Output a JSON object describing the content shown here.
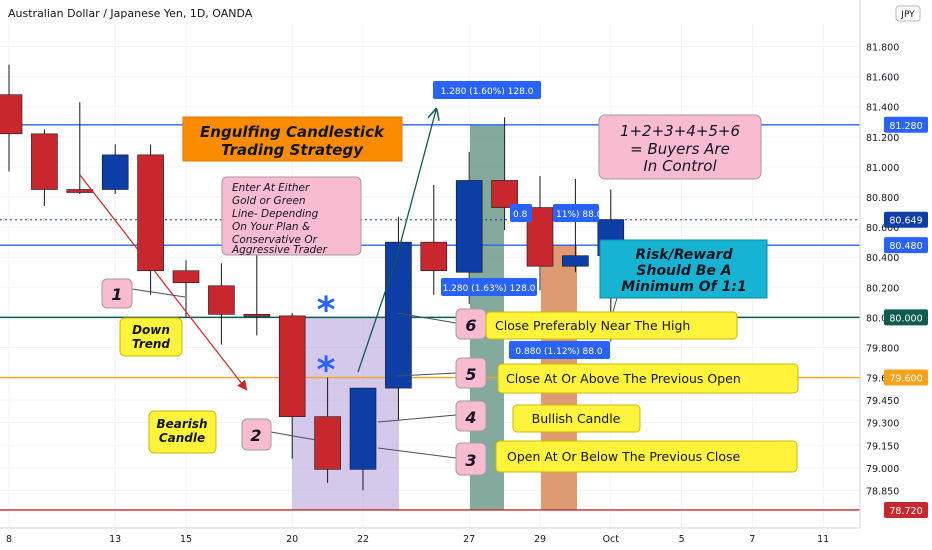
{
  "header": {
    "title": "Australian Dollar / Japanese Yen, 1D, OANDA"
  },
  "currency_badge": "JPY",
  "colors": {
    "up": "#0d3ea6",
    "down": "#c8282d",
    "blue_line": "#2962ff",
    "green_line": "#0f5c4e",
    "orange_line": "#f7a21b",
    "red_line": "#c8282d",
    "callout_pink": "#f8bbd0",
    "callout_yellow": "#fff33b",
    "title_orange": "#fb8c00",
    "risk_cyan": "#16b4d2",
    "purple_zone": "#b39ddb",
    "green_zone": "#6f9a8c",
    "orange_zone": "#d88a5a"
  },
  "chart_data": {
    "type": "candlestick",
    "ylim": [
      78.6,
      81.95
    ],
    "y_ticks": [
      81.8,
      81.6,
      81.4,
      81.2,
      81.0,
      80.8,
      80.6,
      80.4,
      80.2,
      80.0,
      79.8,
      79.6,
      79.45,
      79.3,
      79.15,
      79.0,
      78.85
    ],
    "y_tick_labels": [
      "81.800",
      "81.600",
      "81.400",
      "81.200",
      "81.000",
      "80.800",
      "80.600",
      "80.400",
      "80.200",
      "80.000",
      "79.800",
      "79.600",
      "79.450",
      "79.300",
      "79.150",
      "79.000",
      "78.850"
    ],
    "x_labels": [
      "8",
      "13",
      "15",
      "20",
      "22",
      "27",
      "29",
      "Oct",
      "5",
      "7",
      "11"
    ],
    "candles": [
      {
        "o": 81.48,
        "h": 81.68,
        "l": 80.97,
        "c": 81.22
      },
      {
        "o": 81.22,
        "h": 81.25,
        "l": 80.74,
        "c": 80.85
      },
      {
        "o": 80.85,
        "h": 81.43,
        "l": 80.82,
        "c": 80.83
      },
      {
        "o": 80.85,
        "h": 81.15,
        "l": 80.82,
        "c": 81.08
      },
      {
        "o": 81.08,
        "h": 81.15,
        "l": 80.15,
        "c": 80.31
      },
      {
        "o": 80.31,
        "h": 80.38,
        "l": 80.0,
        "c": 80.23
      },
      {
        "o": 80.21,
        "h": 80.36,
        "l": 79.82,
        "c": 80.02
      },
      {
        "o": 80.02,
        "h": 80.54,
        "l": 79.88,
        "c": 80.01
      },
      {
        "o": 80.01,
        "h": 80.03,
        "l": 79.06,
        "c": 79.34
      },
      {
        "o": 79.34,
        "h": 79.6,
        "l": 78.9,
        "c": 78.99
      },
      {
        "o": 78.99,
        "h": 79.52,
        "l": 78.85,
        "c": 79.53
      },
      {
        "o": 79.53,
        "h": 80.67,
        "l": 79.32,
        "c": 80.5
      },
      {
        "o": 80.5,
        "h": 80.88,
        "l": 80.15,
        "c": 80.31
      },
      {
        "o": 80.3,
        "h": 81.1,
        "l": 80.09,
        "c": 80.91
      },
      {
        "o": 80.91,
        "h": 81.33,
        "l": 80.58,
        "c": 80.73
      },
      {
        "o": 80.73,
        "h": 80.94,
        "l": 80.18,
        "c": 80.34
      },
      {
        "o": 80.34,
        "h": 80.92,
        "l": 80.3,
        "c": 80.41
      },
      {
        "o": 80.41,
        "h": 80.85,
        "l": 79.84,
        "c": 80.65
      }
    ],
    "price_lines": [
      {
        "value": 81.28,
        "label": "81.280",
        "color": "blue_line",
        "style": "solid"
      },
      {
        "value": 80.649,
        "label": "80.649",
        "color": "up",
        "style": "dotted"
      },
      {
        "value": 80.48,
        "label": "80.480",
        "color": "blue_line",
        "style": "solid"
      },
      {
        "value": 80.0,
        "label": "80.000",
        "color": "green_line",
        "style": "solid"
      },
      {
        "value": 79.6,
        "label": "79.600",
        "color": "orange_line",
        "style": "solid"
      },
      {
        "value": 78.72,
        "label": "78.720",
        "color": "red_line",
        "style": "solid"
      }
    ],
    "measure_labels": [
      {
        "text": "1.280 (1.60%) 128.0"
      },
      {
        "text": "1.280 (1.63%) 128.0"
      },
      {
        "text": "0.8 "
      },
      {
        "text": "11%) 88.0"
      },
      {
        "text": "0.880 (1.12%) 88.0"
      }
    ]
  },
  "annotations": {
    "title_box": {
      "line1": "Engulfing Candlestick",
      "line2": "Trading Strategy"
    },
    "enter_box": {
      "lines": [
        "Enter At Either",
        "Gold or Green",
        "Line- Depending",
        "On Your Plan &",
        "Conservative Or",
        "Aggressive Trader"
      ]
    },
    "buyers_box": {
      "lines": [
        "1+2+3+4+5+6",
        "= Buyers Are",
        "In Control"
      ]
    },
    "risk_box": {
      "lines": [
        "Risk/Reward",
        "Should Be A",
        "Minimum Of 1:1"
      ]
    },
    "down_trend": {
      "lines": [
        "Down",
        "Trend"
      ]
    },
    "bearish_candle": {
      "lines": [
        "Bearish",
        "Candle"
      ]
    },
    "numbers": [
      "1",
      "2",
      "3",
      "4",
      "5",
      "6"
    ],
    "rules": [
      "Close Preferably Near The High",
      "Close At Or Above The Previous Open",
      "Bullish Candle",
      "Open At Or Below The Previous Close"
    ]
  }
}
